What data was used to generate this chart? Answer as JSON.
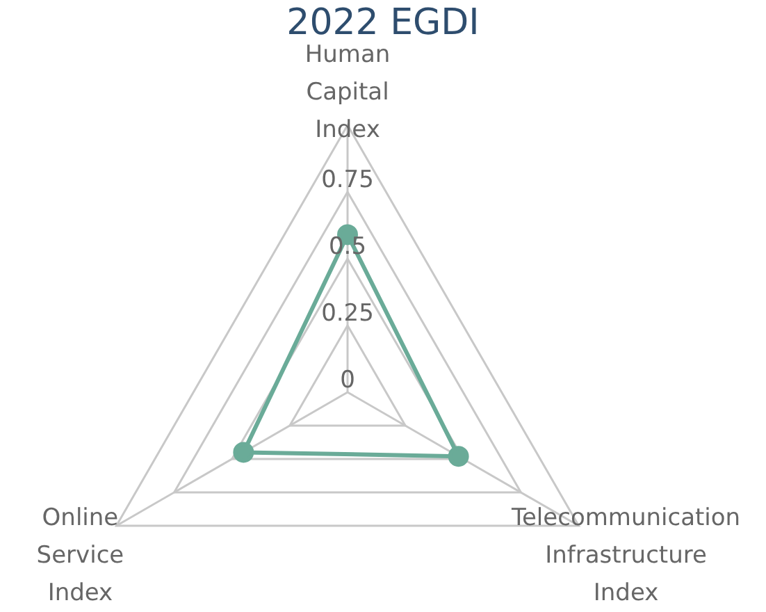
{
  "chart_data": {
    "type": "radar",
    "title": "2022 EGDI",
    "categories": [
      "Human Capital Index",
      "Telecommunication Infrastructure Index",
      "Online Service Index"
    ],
    "series": [
      {
        "color": "#6aab98",
        "values": [
          0.59,
          0.48,
          0.45
        ]
      }
    ],
    "ylim": [
      0,
      1
    ],
    "yticks": [
      0,
      0.25,
      0.5,
      0.75
    ],
    "grid": true,
    "legend": false,
    "marker": "circle"
  }
}
